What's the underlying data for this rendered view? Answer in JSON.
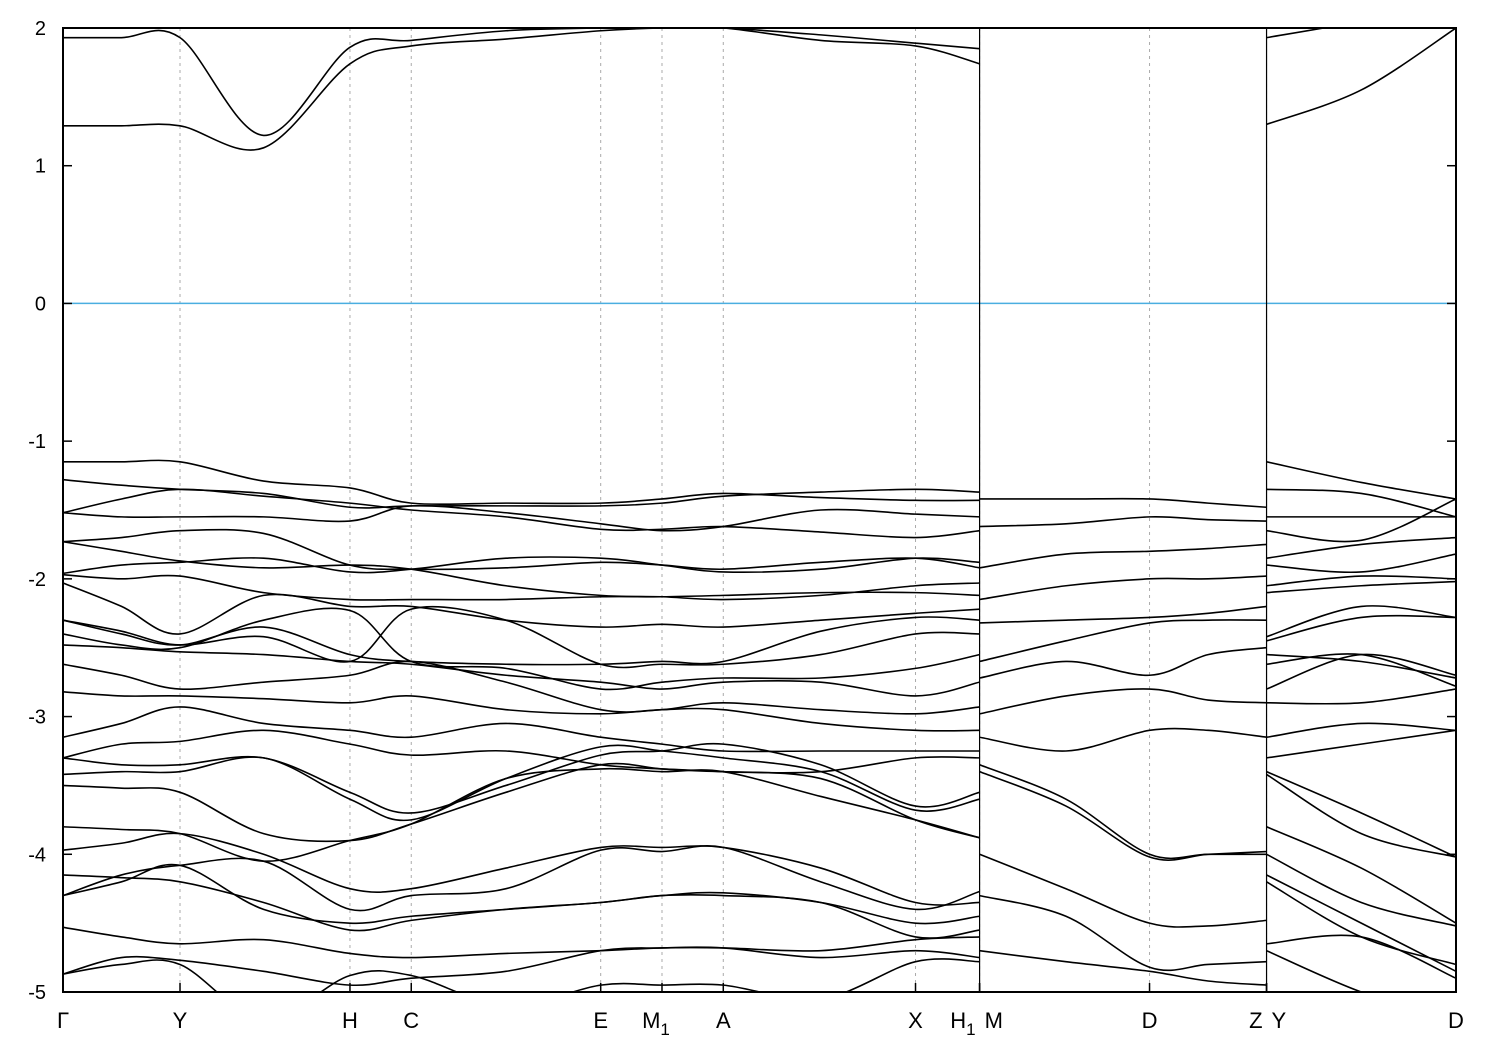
{
  "chart_data": {
    "type": "line",
    "title": "",
    "xlabel": "",
    "ylabel": "",
    "ylim": [
      -5,
      2
    ],
    "xlim": [
      0,
      5.0
    ],
    "yticks": [
      -5,
      -4,
      -3,
      -2,
      -1,
      0,
      1,
      2
    ],
    "grid": "vertical dashed lines at high-symmetry points",
    "fermi_level": {
      "value": 0,
      "color": "#4aaee0"
    },
    "band_color": "#000000",
    "xticks": [
      {
        "k": 0.0,
        "label": "Γ",
        "sub": ""
      },
      {
        "k": 0.42,
        "label": "Y",
        "sub": ""
      },
      {
        "k": 1.03,
        "label": "H",
        "sub": ""
      },
      {
        "k": 1.25,
        "label": "C",
        "sub": ""
      },
      {
        "k": 1.93,
        "label": "E",
        "sub": ""
      },
      {
        "k": 2.15,
        "label": "M",
        "sub": "1"
      },
      {
        "k": 2.37,
        "label": "A",
        "sub": ""
      },
      {
        "k": 3.06,
        "label": "X",
        "sub": ""
      },
      {
        "k": 3.29,
        "label": "H",
        "sub": "1"
      },
      {
        "k": 3.29,
        "label": "M",
        "sub": ""
      },
      {
        "k": 3.9,
        "label": "D",
        "sub": ""
      },
      {
        "k": 4.32,
        "label": "Z",
        "sub": ""
      },
      {
        "k": 4.32,
        "label": "Y",
        "sub": ""
      },
      {
        "k": 5.0,
        "label": "D",
        "sub": ""
      }
    ],
    "segments": [
      {
        "path": "Γ-Y-H-C-E-M1-A-X-H1",
        "k": [
          0.0,
          0.21,
          0.42,
          0.72,
          1.03,
          1.25,
          1.59,
          1.93,
          2.15,
          2.37,
          2.72,
          3.06,
          3.29
        ],
        "bands": [
          [
            1.29,
            1.29,
            1.29,
            1.13,
            1.74,
            1.87,
            1.92,
            1.98,
            2.0,
            2.0,
            1.91,
            1.87,
            1.74
          ],
          [
            1.93,
            1.93,
            1.93,
            1.22,
            1.86,
            1.91,
            1.98,
            2.0,
            2.0,
            2.0,
            1.95,
            1.89,
            1.85
          ],
          [
            -1.15,
            -1.15,
            -1.15,
            -1.29,
            -1.34,
            -1.45,
            -1.45,
            -1.45,
            -1.42,
            -1.38,
            -1.41,
            -1.43,
            -1.43
          ],
          [
            -1.28,
            -1.32,
            -1.35,
            -1.38,
            -1.48,
            -1.47,
            -1.47,
            -1.47,
            -1.45,
            -1.4,
            -1.37,
            -1.35,
            -1.37
          ],
          [
            -1.52,
            -1.42,
            -1.35,
            -1.4,
            -1.45,
            -1.5,
            -1.55,
            -1.64,
            -1.64,
            -1.62,
            -1.66,
            -1.7,
            -1.65
          ],
          [
            -1.52,
            -1.55,
            -1.55,
            -1.55,
            -1.58,
            -1.47,
            -1.52,
            -1.6,
            -1.65,
            -1.62,
            -1.5,
            -1.53,
            -1.55
          ],
          [
            -1.73,
            -1.7,
            -1.65,
            -1.67,
            -1.9,
            -1.93,
            -1.92,
            -1.88,
            -1.9,
            -1.93,
            -1.88,
            -1.85,
            -1.92
          ],
          [
            -1.73,
            -1.8,
            -1.87,
            -1.92,
            -1.9,
            -1.93,
            -2.05,
            -2.12,
            -2.13,
            -2.15,
            -2.12,
            -2.05,
            -2.03
          ],
          [
            -1.96,
            -1.9,
            -1.88,
            -1.85,
            -1.95,
            -1.93,
            -1.85,
            -1.85,
            -1.9,
            -1.95,
            -1.93,
            -1.85,
            -1.88
          ],
          [
            -1.97,
            -2.0,
            -1.98,
            -2.1,
            -2.15,
            -2.15,
            -2.15,
            -2.13,
            -2.13,
            -2.12,
            -2.1,
            -2.1,
            -2.12
          ],
          [
            -2.03,
            -2.2,
            -2.4,
            -2.12,
            -2.2,
            -2.2,
            -2.3,
            -2.35,
            -2.33,
            -2.35,
            -2.3,
            -2.25,
            -2.22
          ],
          [
            -2.3,
            -2.4,
            -2.48,
            -2.35,
            -2.55,
            -2.6,
            -2.62,
            -2.62,
            -2.6,
            -2.6,
            -2.38,
            -2.28,
            -2.3
          ],
          [
            -2.3,
            -2.38,
            -2.48,
            -2.42,
            -2.6,
            -2.22,
            -2.3,
            -2.62,
            -2.62,
            -2.62,
            -2.55,
            -2.4,
            -2.4
          ],
          [
            -2.4,
            -2.48,
            -2.5,
            -2.3,
            -2.23,
            -2.6,
            -2.65,
            -2.8,
            -2.75,
            -2.72,
            -2.72,
            -2.65,
            -2.55
          ],
          [
            -2.48,
            -2.5,
            -2.53,
            -2.55,
            -2.6,
            -2.62,
            -2.7,
            -2.75,
            -2.8,
            -2.75,
            -2.75,
            -2.85,
            -2.75
          ],
          [
            -2.62,
            -2.7,
            -2.8,
            -2.75,
            -2.7,
            -2.6,
            -2.75,
            -2.95,
            -2.95,
            -2.9,
            -2.95,
            -2.98,
            -2.93
          ],
          [
            -2.82,
            -2.85,
            -2.85,
            -2.87,
            -2.9,
            -2.85,
            -2.95,
            -2.98,
            -2.95,
            -2.95,
            -3.05,
            -3.1,
            -3.1
          ],
          [
            -3.15,
            -3.05,
            -2.93,
            -3.05,
            -3.1,
            -3.15,
            -3.05,
            -3.15,
            -3.2,
            -3.25,
            -3.25,
            -3.25,
            -3.25
          ],
          [
            -3.3,
            -3.2,
            -3.18,
            -3.1,
            -3.2,
            -3.28,
            -3.25,
            -3.35,
            -3.38,
            -3.4,
            -3.4,
            -3.3,
            -3.3
          ],
          [
            -3.3,
            -3.35,
            -3.35,
            -3.3,
            -3.55,
            -3.7,
            -3.5,
            -3.28,
            -3.25,
            -3.2,
            -3.35,
            -3.65,
            -3.55
          ],
          [
            -3.42,
            -3.4,
            -3.4,
            -3.3,
            -3.6,
            -3.75,
            -3.45,
            -3.22,
            -3.25,
            -3.3,
            -3.4,
            -3.68,
            -3.6
          ],
          [
            -3.5,
            -3.52,
            -3.55,
            -3.85,
            -3.9,
            -3.78,
            -3.55,
            -3.35,
            -3.38,
            -3.4,
            -3.45,
            -3.75,
            -3.88
          ],
          [
            -3.8,
            -3.82,
            -3.85,
            -4.05,
            -3.9,
            -3.78,
            -3.45,
            -3.38,
            -3.4,
            -3.4,
            -3.58,
            -3.75,
            -3.88
          ],
          [
            -3.97,
            -3.92,
            -3.85,
            -4.0,
            -4.25,
            -4.25,
            -4.1,
            -3.95,
            -3.95,
            -3.95,
            -4.1,
            -4.35,
            -4.35
          ],
          [
            -4.3,
            -4.15,
            -4.08,
            -4.05,
            -4.4,
            -4.3,
            -4.25,
            -3.97,
            -3.98,
            -3.95,
            -4.2,
            -4.4,
            -4.27
          ],
          [
            -4.15,
            -4.17,
            -4.2,
            -4.35,
            -4.55,
            -4.48,
            -4.4,
            -4.35,
            -4.3,
            -4.28,
            -4.35,
            -4.5,
            -4.45
          ],
          [
            -4.3,
            -4.2,
            -4.08,
            -4.4,
            -4.5,
            -4.45,
            -4.4,
            -4.35,
            -4.3,
            -4.3,
            -4.35,
            -4.6,
            -4.55
          ],
          [
            -4.53,
            -4.6,
            -4.65,
            -4.62,
            -4.72,
            -4.75,
            -4.72,
            -4.7,
            -4.68,
            -4.68,
            -4.7,
            -4.62,
            -4.6
          ],
          [
            -4.87,
            -4.75,
            -4.77,
            -4.85,
            -4.95,
            -4.9,
            -4.85,
            -4.7,
            -4.68,
            -4.68,
            -4.75,
            -4.7,
            -4.75
          ],
          [
            -4.87,
            -4.8,
            -4.8,
            -5.2,
            -4.88,
            -4.88,
            -5.1,
            -4.95,
            -4.95,
            -4.95,
            -5.05,
            -4.78,
            -4.78
          ]
        ]
      },
      {
        "path": "M-D-Z",
        "k": [
          3.29,
          3.6,
          3.9,
          4.11,
          4.32
        ],
        "bands": [
          [
            -1.42,
            -1.42,
            -1.42,
            -1.45,
            -1.48
          ],
          [
            -1.62,
            -1.6,
            -1.55,
            -1.57,
            -1.58
          ],
          [
            -1.92,
            -1.82,
            -1.8,
            -1.78,
            -1.75
          ],
          [
            -2.15,
            -2.05,
            -2.0,
            -2.0,
            -1.98
          ],
          [
            -2.32,
            -2.3,
            -2.28,
            -2.25,
            -2.2
          ],
          [
            -2.6,
            -2.45,
            -2.32,
            -2.3,
            -2.3
          ],
          [
            -2.72,
            -2.6,
            -2.7,
            -2.55,
            -2.5
          ],
          [
            -2.98,
            -2.85,
            -2.8,
            -2.88,
            -2.9
          ],
          [
            -3.15,
            -3.25,
            -3.1,
            -3.1,
            -3.15
          ],
          [
            -3.35,
            -3.6,
            -4.0,
            -4.0,
            -4.0
          ],
          [
            -3.4,
            -3.65,
            -4.02,
            -4.0,
            -3.98
          ],
          [
            -4.0,
            -4.25,
            -4.5,
            -4.52,
            -4.48
          ],
          [
            -4.3,
            -4.45,
            -4.82,
            -4.8,
            -4.78
          ],
          [
            -4.7,
            -4.78,
            -4.85,
            -4.92,
            -4.95
          ]
        ]
      },
      {
        "path": "Y-D",
        "k": [
          4.32,
          4.66,
          5.0
        ],
        "bands": [
          [
            1.3,
            1.55,
            2.0
          ],
          [
            1.93,
            2.05,
            2.2
          ],
          [
            -1.15,
            -1.3,
            -1.42
          ],
          [
            -1.35,
            -1.38,
            -1.55
          ],
          [
            -1.55,
            -1.55,
            -1.55
          ],
          [
            -1.65,
            -1.72,
            -1.42
          ],
          [
            -1.85,
            -1.75,
            -1.7
          ],
          [
            -1.9,
            -1.95,
            -1.82
          ],
          [
            -2.05,
            -1.98,
            -2.0
          ],
          [
            -2.1,
            -2.05,
            -2.02
          ],
          [
            -2.42,
            -2.2,
            -2.28
          ],
          [
            -2.45,
            -2.28,
            -2.28
          ],
          [
            -2.55,
            -2.6,
            -2.72
          ],
          [
            -2.62,
            -2.55,
            -2.78
          ],
          [
            -2.8,
            -2.55,
            -2.7
          ],
          [
            -2.9,
            -2.9,
            -2.8
          ],
          [
            -3.15,
            -3.05,
            -3.1
          ],
          [
            -3.3,
            -3.2,
            -3.1
          ],
          [
            -3.4,
            -3.7,
            -4.02
          ],
          [
            -3.42,
            -3.85,
            -4.02
          ],
          [
            -3.8,
            -4.1,
            -4.5
          ],
          [
            -4.0,
            -4.35,
            -4.52
          ],
          [
            -4.15,
            -4.5,
            -4.85
          ],
          [
            -4.2,
            -4.6,
            -4.8
          ],
          [
            -4.65,
            -4.6,
            -4.9
          ],
          [
            -4.7,
            -5.0,
            -5.2
          ]
        ]
      }
    ]
  }
}
